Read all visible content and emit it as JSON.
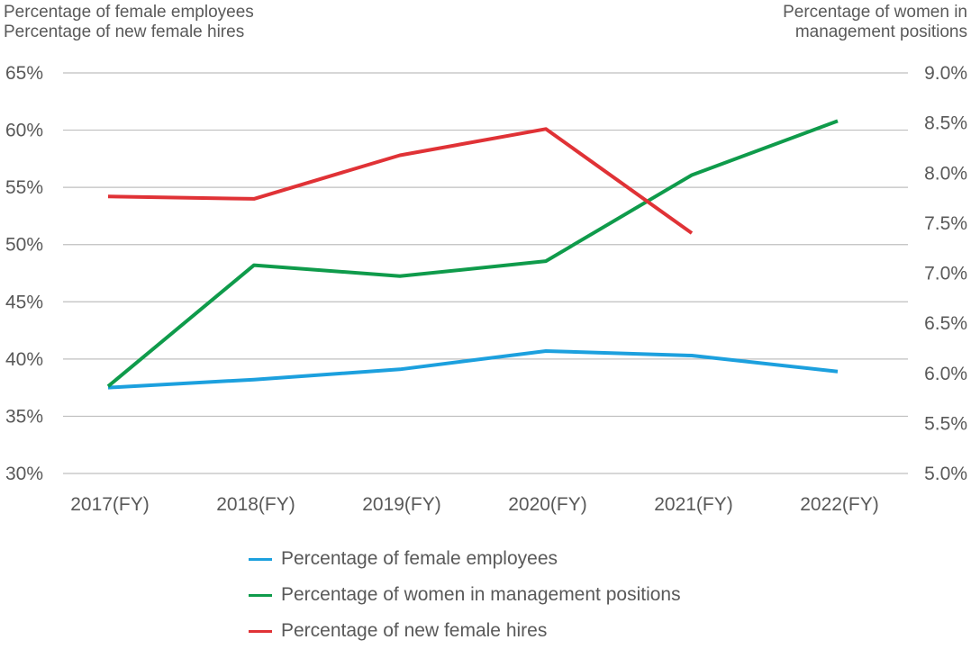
{
  "chart_data": {
    "type": "line",
    "title": "",
    "left_axis_title": [
      "Percentage of female employees",
      "Percentage of new female hires"
    ],
    "right_axis_title": [
      "Percentage of women in",
      "management positions"
    ],
    "categories": [
      "2017(FY)",
      "2018(FY)",
      "2019(FY)",
      "2020(FY)",
      "2021(FY)",
      "2022(FY)"
    ],
    "left_axis": {
      "min": 30,
      "max": 65,
      "step": 5,
      "tick_labels": [
        "30%",
        "35%",
        "40%",
        "45%",
        "50%",
        "55%",
        "60%",
        "65%"
      ]
    },
    "right_axis": {
      "min": 5.0,
      "max": 9.0,
      "step": 0.5,
      "tick_labels": [
        "5.0%",
        "5.5%",
        "6.0%",
        "6.5%",
        "7.0%",
        "7.5%",
        "8.0%",
        "8.5%",
        "9.0%"
      ]
    },
    "grid": true,
    "legend_position": "bottom",
    "series": [
      {
        "name": "Percentage of female employees",
        "axis": "left",
        "color": "#1ca0de",
        "values": [
          37.5,
          38.2,
          39.1,
          40.7,
          40.3,
          38.9
        ]
      },
      {
        "name": "Percentage of women in management positions",
        "axis": "right",
        "color": "#0f9b4b",
        "values": [
          5.87,
          7.08,
          6.97,
          7.12,
          7.98,
          8.52
        ]
      },
      {
        "name": "Percentage of new female hires",
        "axis": "left",
        "color": "#e03236",
        "values": [
          54.2,
          54.0,
          57.8,
          60.1,
          51.0,
          null
        ]
      }
    ]
  }
}
